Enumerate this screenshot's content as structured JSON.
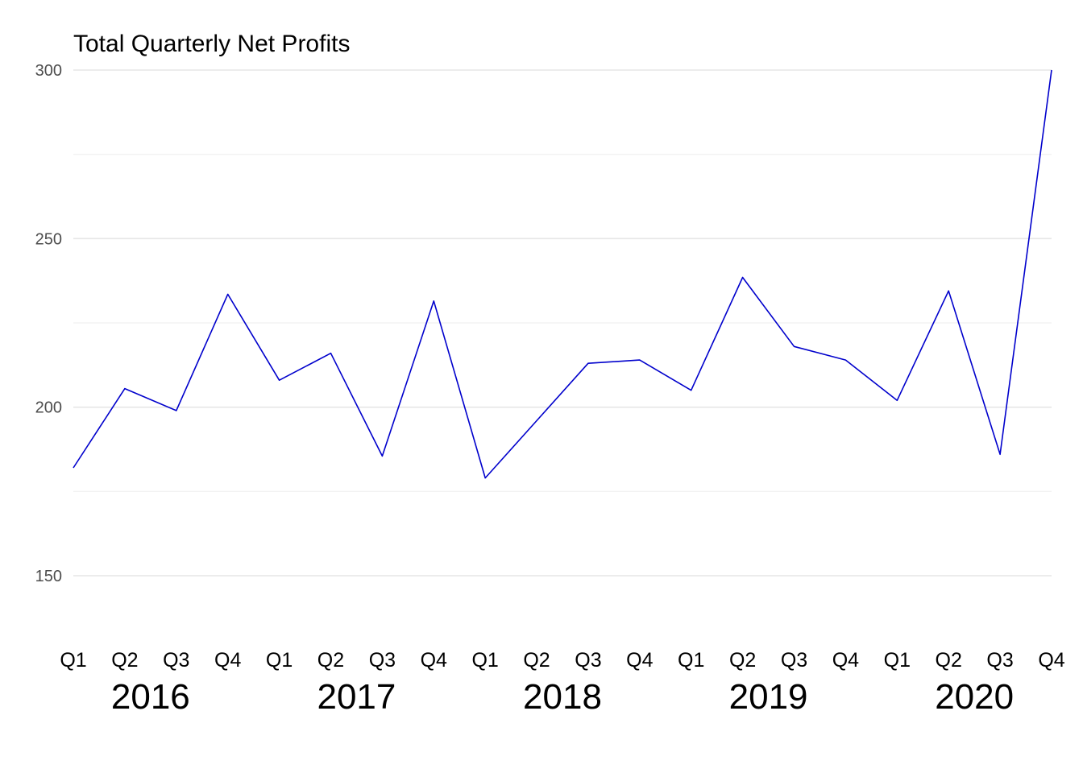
{
  "chart_data": {
    "type": "line",
    "title": "Total Quarterly Net Profits",
    "xlabel": "",
    "ylabel": "",
    "ylim": [
      135,
      305
    ],
    "yticks": [
      150,
      200,
      250,
      300
    ],
    "minor_gridlines": [
      175,
      225,
      275
    ],
    "grid": true,
    "legend": "none",
    "line_color": "#0000cc",
    "grid_major_color": "#e6e6e6",
    "grid_minor_color": "#f0f0f0",
    "x": [
      "Q1",
      "Q2",
      "Q3",
      "Q4",
      "Q1",
      "Q2",
      "Q3",
      "Q4",
      "Q1",
      "Q2",
      "Q3",
      "Q4",
      "Q1",
      "Q2",
      "Q3",
      "Q4",
      "Q1",
      "Q2",
      "Q3",
      "Q4"
    ],
    "years": [
      "2016",
      "2017",
      "2018",
      "2019",
      "2020"
    ],
    "series": [
      {
        "name": "Net Profits",
        "values": [
          182,
          205.5,
          199,
          233.5,
          208,
          216,
          185.5,
          231.5,
          179,
          196,
          213,
          214,
          205,
          238.5,
          218,
          214,
          202,
          234.5,
          186,
          300
        ]
      }
    ]
  }
}
